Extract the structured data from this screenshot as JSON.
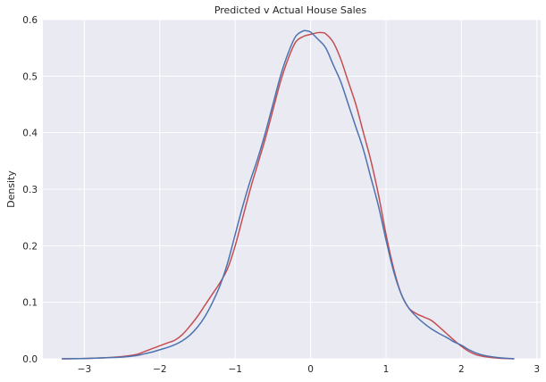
{
  "chart_data": {
    "type": "line",
    "title": "Predicted v Actual House Sales",
    "xlabel": "",
    "ylabel": "Density",
    "xlim": [
      -3.55,
      3.05
    ],
    "ylim": [
      0,
      0.6
    ],
    "xticks": [
      -3,
      -2,
      -1,
      0,
      1,
      2,
      3
    ],
    "yticks": [
      0.0,
      0.1,
      0.2,
      0.3,
      0.4,
      0.5,
      0.6
    ],
    "xtick_labels": [
      "−3",
      "−2",
      "−1",
      "0",
      "1",
      "2",
      "3"
    ],
    "ytick_labels": [
      "0.0",
      "0.1",
      "0.2",
      "0.3",
      "0.4",
      "0.5",
      "0.6"
    ],
    "grid": true,
    "background": "#eaeaf2",
    "grid_color": "#ffffff",
    "series": [
      {
        "color": "#c44e52",
        "x": [
          -3.3,
          -3.0,
          -2.7,
          -2.5,
          -2.3,
          -2.2,
          -2.1,
          -2.0,
          -1.9,
          -1.8,
          -1.7,
          -1.6,
          -1.5,
          -1.4,
          -1.3,
          -1.2,
          -1.1,
          -1.0,
          -0.9,
          -0.8,
          -0.7,
          -0.6,
          -0.5,
          -0.4,
          -0.3,
          -0.2,
          -0.1,
          0.0,
          0.1,
          0.15,
          0.2,
          0.3,
          0.4,
          0.5,
          0.6,
          0.7,
          0.8,
          0.9,
          1.0,
          1.1,
          1.2,
          1.3,
          1.4,
          1.5,
          1.6,
          1.7,
          1.8,
          1.9,
          2.0,
          2.1,
          2.2,
          2.3,
          2.5,
          2.7
        ],
        "y": [
          0.0,
          0.0005,
          0.002,
          0.004,
          0.008,
          0.013,
          0.018,
          0.023,
          0.028,
          0.033,
          0.043,
          0.058,
          0.075,
          0.095,
          0.115,
          0.135,
          0.16,
          0.2,
          0.25,
          0.3,
          0.345,
          0.39,
          0.44,
          0.49,
          0.53,
          0.56,
          0.57,
          0.574,
          0.577,
          0.577,
          0.575,
          0.56,
          0.53,
          0.49,
          0.45,
          0.4,
          0.35,
          0.29,
          0.22,
          0.16,
          0.115,
          0.09,
          0.08,
          0.074,
          0.068,
          0.057,
          0.045,
          0.033,
          0.022,
          0.013,
          0.007,
          0.004,
          0.001,
          0.0
        ]
      },
      {
        "color": "#4c72b0",
        "x": [
          -3.3,
          -3.0,
          -2.7,
          -2.5,
          -2.3,
          -2.2,
          -2.1,
          -2.0,
          -1.9,
          -1.8,
          -1.7,
          -1.6,
          -1.5,
          -1.4,
          -1.3,
          -1.2,
          -1.1,
          -1.0,
          -0.9,
          -0.8,
          -0.7,
          -0.6,
          -0.5,
          -0.4,
          -0.3,
          -0.2,
          -0.1,
          -0.05,
          0.0,
          0.1,
          0.2,
          0.3,
          0.4,
          0.5,
          0.6,
          0.7,
          0.8,
          0.9,
          1.0,
          1.1,
          1.2,
          1.3,
          1.4,
          1.5,
          1.6,
          1.7,
          1.8,
          1.9,
          2.0,
          2.1,
          2.2,
          2.3,
          2.5,
          2.7
        ],
        "y": [
          0.0,
          0.0005,
          0.002,
          0.003,
          0.006,
          0.009,
          0.012,
          0.016,
          0.02,
          0.025,
          0.032,
          0.042,
          0.056,
          0.075,
          0.1,
          0.13,
          0.17,
          0.22,
          0.27,
          0.315,
          0.355,
          0.4,
          0.45,
          0.5,
          0.54,
          0.57,
          0.58,
          0.58,
          0.578,
          0.565,
          0.55,
          0.52,
          0.49,
          0.45,
          0.41,
          0.37,
          0.32,
          0.27,
          0.21,
          0.155,
          0.115,
          0.09,
          0.075,
          0.063,
          0.053,
          0.045,
          0.038,
          0.03,
          0.024,
          0.016,
          0.01,
          0.006,
          0.002,
          0.0
        ]
      }
    ]
  }
}
